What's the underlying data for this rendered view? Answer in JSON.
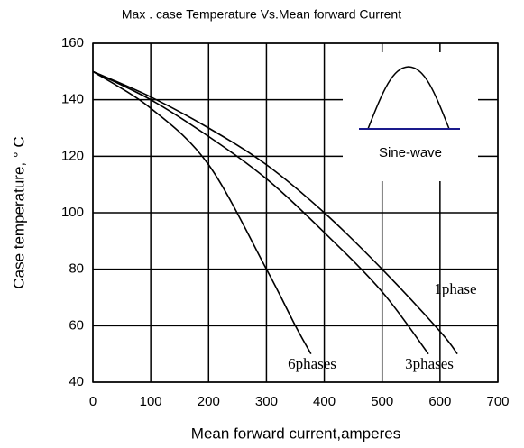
{
  "chart_data": {
    "type": "line",
    "title": "Max . case Temperature Vs.Mean forward Current",
    "xlabel": "Mean forward current,amperes",
    "ylabel": "Case temperature, ° C",
    "annotation": "Sine-wave",
    "xlim": [
      0,
      700
    ],
    "xticks": [
      0,
      100,
      200,
      300,
      400,
      500,
      600,
      700
    ],
    "ylim": [
      40,
      160
    ],
    "yticks": [
      40,
      60,
      80,
      100,
      120,
      140,
      160
    ],
    "grid": true,
    "series": [
      {
        "name": "1phase",
        "color": "#000000",
        "x": [
          0,
          100,
          200,
          300,
          400,
          500,
          600,
          630
        ],
        "values": [
          150,
          141,
          130,
          117,
          100,
          80,
          58,
          50
        ]
      },
      {
        "name": "3phases",
        "color": "#000000",
        "x": [
          0,
          100,
          200,
          300,
          400,
          500,
          580
        ],
        "values": [
          150,
          140,
          127,
          112,
          93,
          72,
          50
        ]
      },
      {
        "name": "6phases",
        "color": "#000000",
        "x": [
          0,
          100,
          200,
          300,
          350,
          377
        ],
        "values": [
          150,
          137,
          117,
          80,
          60,
          50
        ]
      }
    ]
  }
}
